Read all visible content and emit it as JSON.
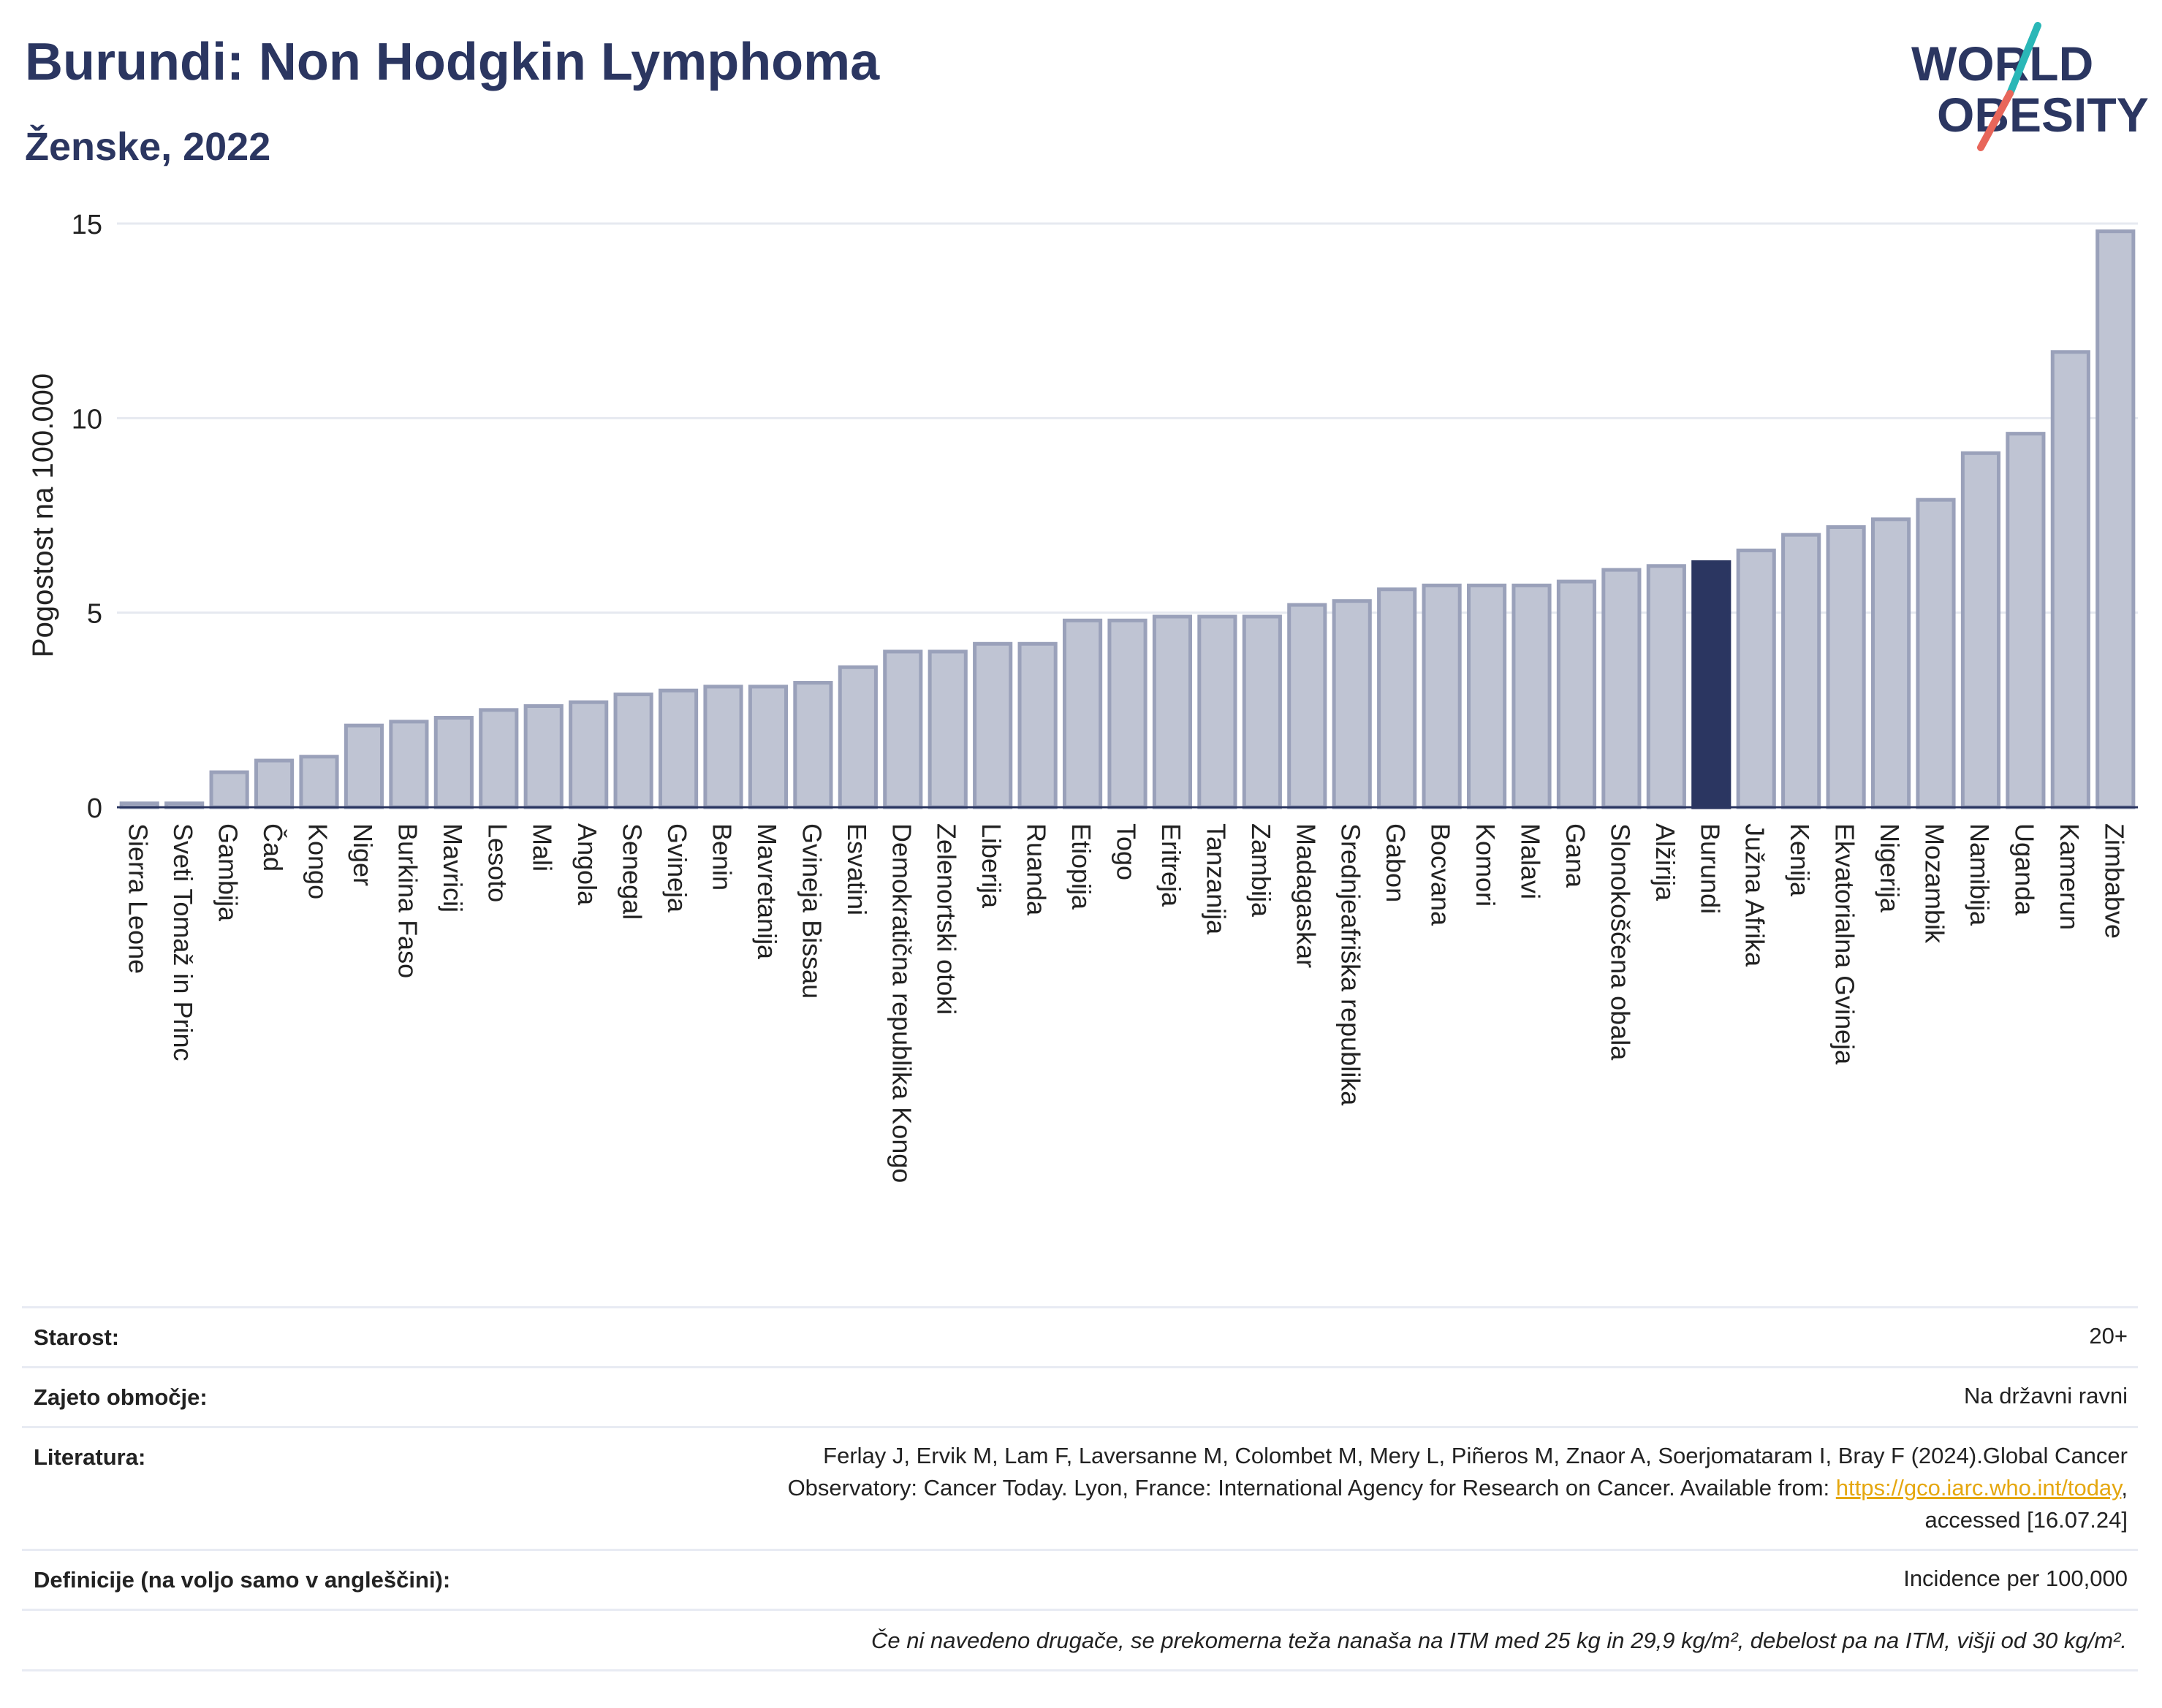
{
  "header": {
    "title": "Burundi: Non Hodgkin Lymphoma",
    "subtitle": "Ženske, 2022"
  },
  "logo": {
    "line1": "WORLD",
    "line2": "OBESITY",
    "colors": {
      "text": "#2b3661",
      "slash_top": "#2ab7b7",
      "slash_bottom": "#e8665a"
    }
  },
  "colors": {
    "bar_fill": "#bfc4d3",
    "bar_stroke": "#9aa1ba",
    "highlight": "#2b3661",
    "grid": "#e6e9f0",
    "axis": "#2b3661"
  },
  "chart_data": {
    "type": "bar",
    "title": "",
    "xlabel": "",
    "ylabel": "Pogostost na 100.000",
    "ylim": [
      0,
      15
    ],
    "yticks": [
      0,
      5,
      10,
      15
    ],
    "grid": true,
    "highlight_category": "Burundi",
    "categories": [
      "Sierra Leone",
      "Sveti Tomaž in Princ",
      "Gambija",
      "Čad",
      "Kongo",
      "Niger",
      "Burkina Faso",
      "Mavricij",
      "Lesoto",
      "Mali",
      "Angola",
      "Senegal",
      "Gvineja",
      "Benin",
      "Mavretanija",
      "Gvineja Bissau",
      "Esvatini",
      "Demokratična republika Kongo",
      "Zelenortski otoki",
      "Liberija",
      "Ruanda",
      "Etiopija",
      "Togo",
      "Eritreja",
      "Tanzanija",
      "Zambija",
      "Madagaskar",
      "Srednjeafriška republika",
      "Gabon",
      "Bocvana",
      "Komori",
      "Malavi",
      "Gana",
      "Slonokoščena obala",
      "Alžirija",
      "Burundi",
      "Južna Afrika",
      "Kenija",
      "Ekvatorialna Gvineja",
      "Nigerija",
      "Mozambik",
      "Namibija",
      "Uganda",
      "Kamerun",
      "Zimbabve"
    ],
    "values": [
      0.1,
      0.1,
      0.9,
      1.2,
      1.3,
      2.1,
      2.2,
      2.3,
      2.5,
      2.6,
      2.7,
      2.9,
      3.0,
      3.1,
      3.1,
      3.2,
      3.6,
      4.0,
      4.0,
      4.2,
      4.2,
      4.8,
      4.8,
      4.9,
      4.9,
      4.9,
      5.2,
      5.3,
      5.6,
      5.7,
      5.7,
      5.7,
      5.8,
      6.1,
      6.2,
      6.3,
      6.6,
      7.0,
      7.2,
      7.4,
      7.9,
      9.1,
      9.6,
      11.7,
      14.8
    ]
  },
  "meta": {
    "age_label": "Starost:",
    "age_value": "20+",
    "area_label": "Zajeto območje:",
    "area_value": "Na državni ravni",
    "ref_label": "Literatura:",
    "ref_line1": "Ferlay J, Ervik M, Lam F, Laversanne M, Colombet M, Mery L, Piñeros M, Znaor A, Soerjomataram I, Bray F (2024).Global Cancer",
    "ref_line2_prefix": "Observatory: Cancer Today. Lyon, France: International Agency for Research on Cancer. Available from: ",
    "ref_link": "https://gco.iarc.who.int/today",
    "ref_line2_suffix": ",",
    "ref_line3": "accessed [16.07.24]",
    "def_label": "Definicije (na voljo samo v angleščini):",
    "def_value": "Incidence per 100,000",
    "footnote": "Če ni navedeno drugače, se prekomerna teža nanaša na ITM med 25 kg in 29,9 kg/m², debelost pa na ITM, višji od 30 kg/m²."
  }
}
